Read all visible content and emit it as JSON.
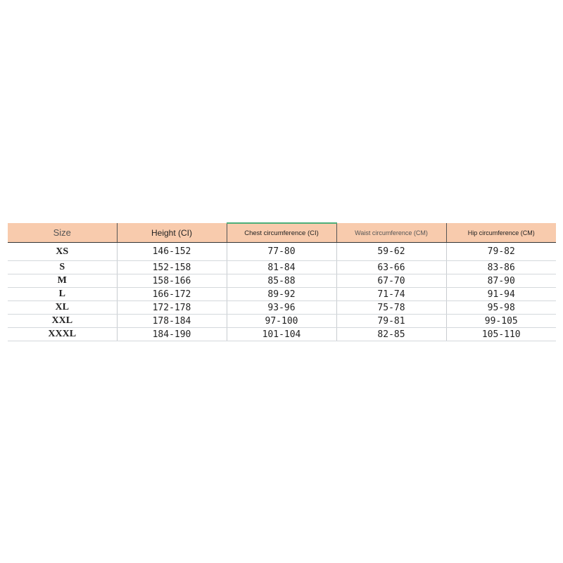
{
  "table": {
    "headers": [
      "Size",
      "Height (CI)",
      "Chest circumference (CI)",
      "Waist circumference (CM)",
      "Hip circumference (CM)"
    ],
    "rows": [
      [
        "XS",
        "146-152",
        "77-80",
        "59-62",
        "79-82"
      ],
      [
        "S",
        "152-158",
        "81-84",
        "63-66",
        "83-86"
      ],
      [
        "M",
        "158-166",
        "85-88",
        "67-70",
        "87-90"
      ],
      [
        "L",
        "166-172",
        "89-92",
        "71-74",
        "91-94"
      ],
      [
        "XL",
        "172-178",
        "93-96",
        "75-78",
        "95-98"
      ],
      [
        "XXL",
        "178-184",
        "97-100",
        "79-81",
        "99-105"
      ],
      [
        "XXXL",
        "184-190",
        "101-104",
        "82-85",
        "105-110"
      ]
    ],
    "header_color": "#f8cbad"
  }
}
